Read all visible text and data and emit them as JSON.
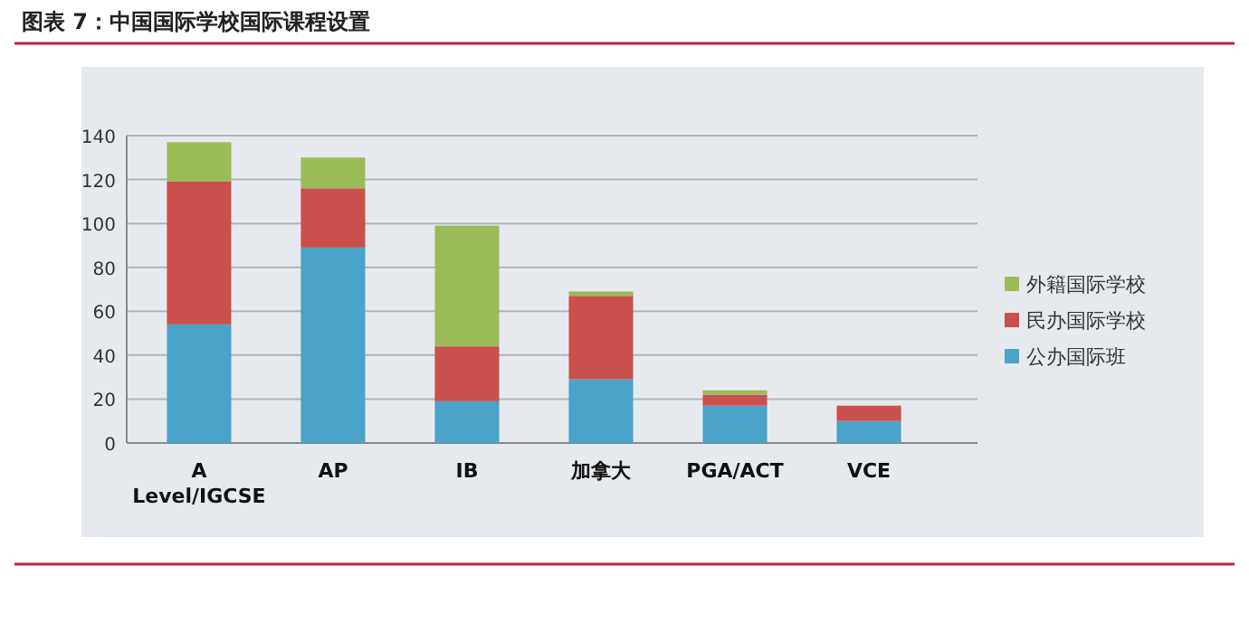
{
  "chart_data": {
    "type": "bar",
    "title": "图表 7：中国国际学校国际课程设置",
    "categories": [
      "A Level/IGCSE",
      "AP",
      "IB",
      "加拿大",
      "PGA/ACT",
      "VCE"
    ],
    "stacked": true,
    "series": [
      {
        "name": "公办国际班",
        "color": "#4aa3c9",
        "values": [
          54,
          89,
          19,
          29,
          17,
          10
        ]
      },
      {
        "name": "民办国际学校",
        "color": "#c9504c",
        "values": [
          65,
          27,
          25,
          38,
          5,
          7
        ]
      },
      {
        "name": "外籍国际学校",
        "color": "#9bbb59",
        "values": [
          18,
          14,
          55,
          2,
          2,
          0
        ]
      }
    ],
    "ylim": [
      0,
      140
    ],
    "yticks": [
      0,
      20,
      40,
      60,
      80,
      100,
      120,
      140
    ],
    "grid": "y",
    "legend": "right"
  }
}
